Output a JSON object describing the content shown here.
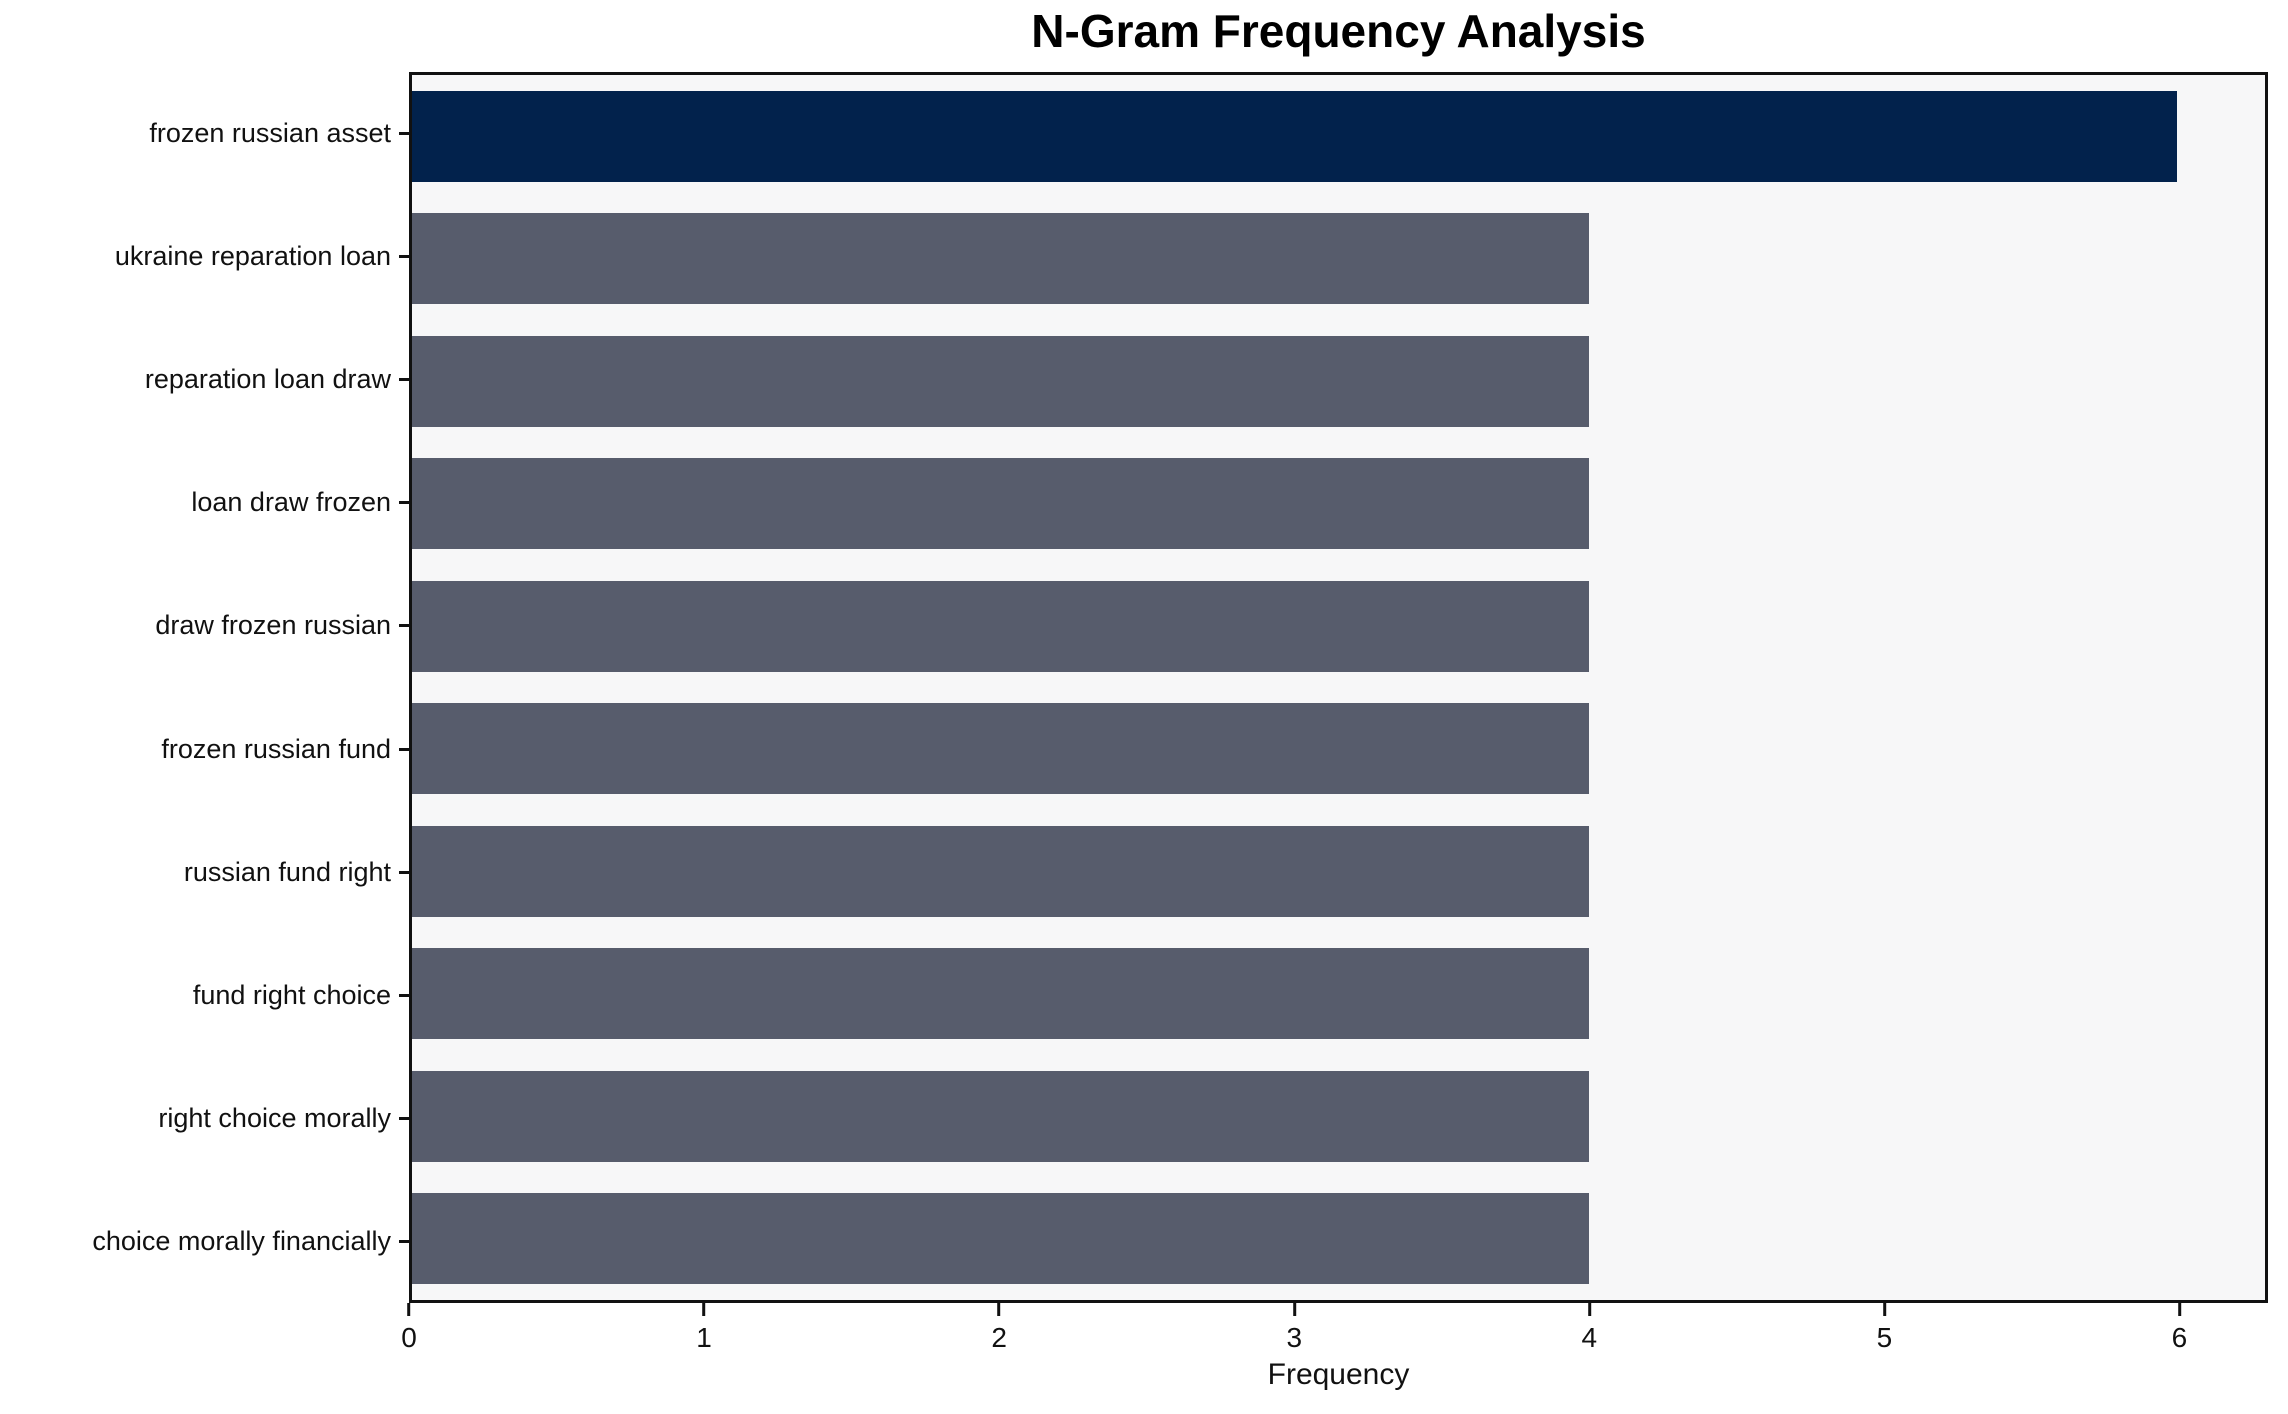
{
  "chart_data": {
    "type": "bar",
    "orientation": "horizontal",
    "title": "N-Gram Frequency Analysis",
    "xlabel": "Frequency",
    "ylabel": "",
    "categories": [
      "frozen russian asset",
      "ukraine reparation loan",
      "reparation loan draw",
      "loan draw frozen",
      "draw frozen russian",
      "frozen russian fund",
      "russian fund right",
      "fund right choice",
      "right choice morally",
      "choice morally financially"
    ],
    "values": [
      6,
      4,
      4,
      4,
      4,
      4,
      4,
      4,
      4,
      4
    ],
    "bar_colors": [
      "#02224c",
      "#575c6c",
      "#575c6c",
      "#575c6c",
      "#575c6c",
      "#575c6c",
      "#575c6c",
      "#575c6c",
      "#575c6c",
      "#575c6c"
    ],
    "x_ticks": [
      0,
      1,
      2,
      3,
      4,
      5,
      6
    ],
    "xlim": [
      0,
      6.3
    ],
    "grid": false,
    "legend": null,
    "colors": {
      "highlight_bar": "#02224c",
      "default_bar": "#575c6c",
      "plot_background": "#f7f7f8",
      "axis": "#111111",
      "text": "#111111"
    }
  }
}
